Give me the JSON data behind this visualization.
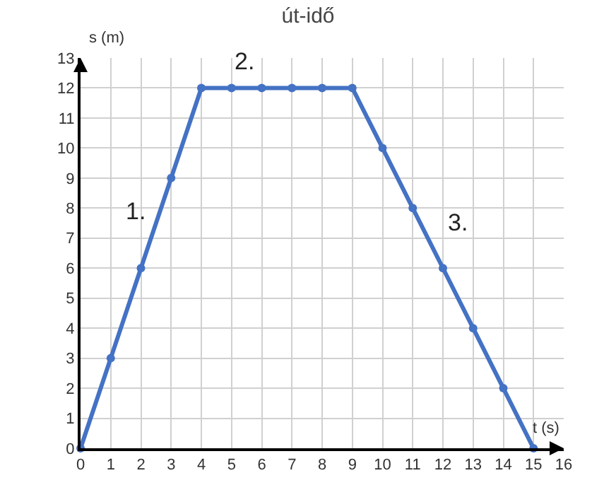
{
  "chart_data": {
    "type": "line",
    "title": "út-idő",
    "xlabel": "t (s)",
    "ylabel": "s (m)",
    "x": [
      0,
      1,
      2,
      3,
      4,
      5,
      6,
      7,
      8,
      9,
      10,
      11,
      12,
      13,
      14,
      15
    ],
    "series": [
      {
        "color": "#4472c4",
        "values": [
          0,
          3,
          6,
          9,
          12,
          12,
          12,
          12,
          12,
          12,
          10,
          8,
          6,
          4,
          2,
          0
        ]
      }
    ],
    "xlim": [
      0,
      16
    ],
    "xticks": [
      0,
      1,
      2,
      3,
      4,
      5,
      6,
      7,
      8,
      9,
      10,
      11,
      12,
      13,
      14,
      15,
      16
    ],
    "ylim": [
      0,
      13
    ],
    "yticks": [
      0,
      1,
      2,
      3,
      4,
      5,
      6,
      7,
      8,
      9,
      10,
      11,
      12,
      13
    ],
    "grid": true,
    "marker": "circle",
    "line_style": "solid",
    "annotations": [
      "1.",
      "2.",
      "3."
    ]
  }
}
